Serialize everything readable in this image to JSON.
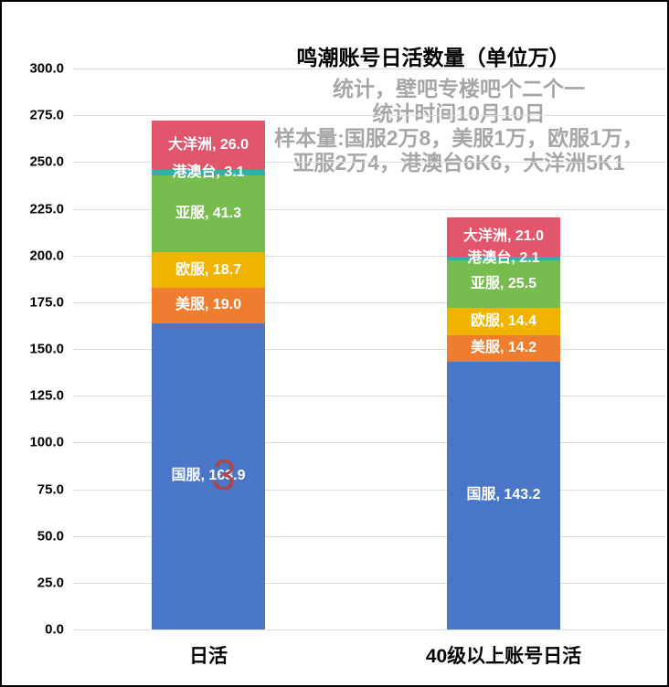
{
  "title": "鸣潮账号日活数量（单位万）",
  "subtitle_lines": [
    "统计，壁吧专楼吧个二个一",
    "统计时间10月10日",
    "样本量:国服2万8，美服1万，欧服1万，",
    "亚服2万4，港澳台6K6，大洋洲5K1"
  ],
  "annotation": {
    "text": "3",
    "color": "#b5413f"
  },
  "colors": {
    "grid": "#dcdcdc",
    "title_text": "#000000",
    "subtitle_text": "#a6a6a6",
    "segment_label_text": "#ffffff"
  },
  "chart_data": {
    "type": "bar",
    "stacked": true,
    "title": "鸣潮账号日活数量（单位万）",
    "categories": [
      "日活",
      "40级以上账号日活"
    ],
    "series": [
      {
        "name": "国服",
        "color": "#4a76c8",
        "values": [
          163.9,
          143.2
        ]
      },
      {
        "name": "美服",
        "color": "#ee7d2f",
        "values": [
          19.0,
          14.2
        ]
      },
      {
        "name": "欧服",
        "color": "#f0b400",
        "values": [
          18.7,
          14.4
        ]
      },
      {
        "name": "亚服",
        "color": "#76bc4f",
        "values": [
          41.3,
          25.5
        ]
      },
      {
        "name": "港澳台",
        "color": "#31b0ae",
        "values": [
          3.1,
          2.1
        ]
      },
      {
        "name": "大洋洲",
        "color": "#e2566b",
        "values": [
          26.0,
          21.0
        ]
      }
    ],
    "totals": [
      272.0,
      220.4
    ],
    "ylim": [
      0,
      300
    ],
    "ytick_step": 25,
    "ytick_format_decimals": 1,
    "grid": true,
    "legend": "none",
    "value_label_format": "{name}, {value}"
  }
}
